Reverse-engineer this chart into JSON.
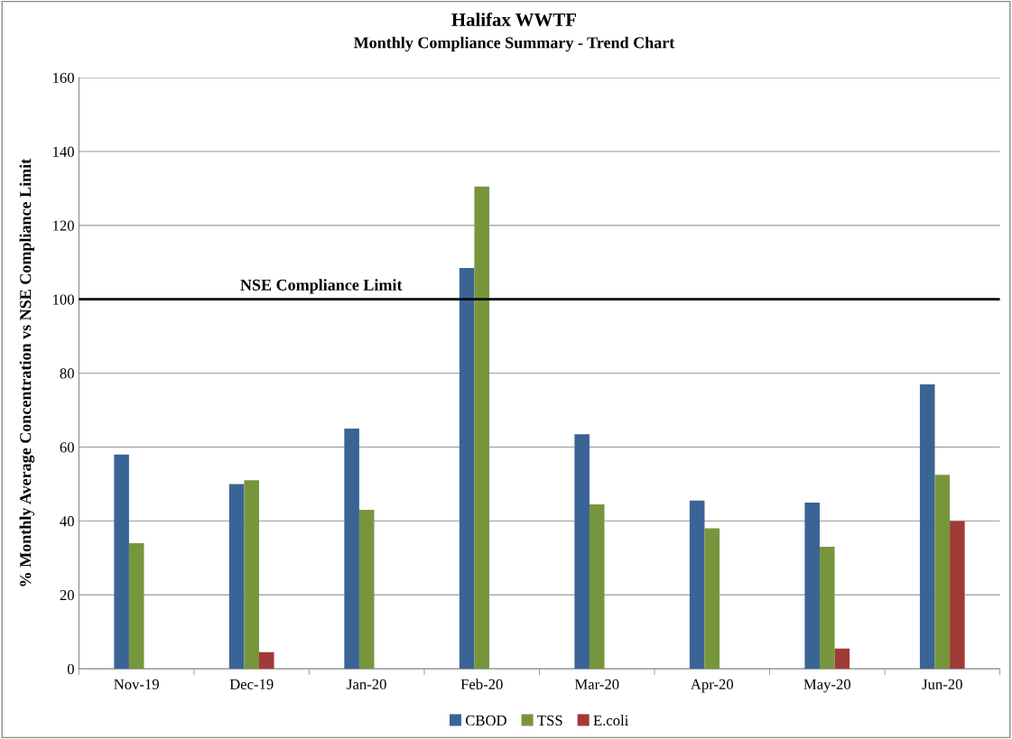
{
  "chart_data": {
    "type": "bar",
    "title": "Halifax WWTF",
    "subtitle": "Monthly Compliance Summary - Trend Chart",
    "ylabel": "% Monthly Average Concentration vs NSE Compliance Limit",
    "categories": [
      "Nov-19",
      "Dec-19",
      "Jan-20",
      "Feb-20",
      "Mar-20",
      "Apr-20",
      "May-20",
      "Jun-20"
    ],
    "series": [
      {
        "name": "CBOD",
        "color": "#3a6496",
        "values": [
          58,
          50,
          65,
          108.5,
          63.5,
          45.5,
          45,
          77
        ]
      },
      {
        "name": "TSS",
        "color": "#77963c",
        "values": [
          34,
          51,
          43,
          130.5,
          44.5,
          38,
          33,
          52.5
        ]
      },
      {
        "name": "E.coli",
        "color": "#a03a36",
        "values": [
          null,
          4.5,
          null,
          null,
          null,
          null,
          5.5,
          40
        ]
      }
    ],
    "ylim": [
      0,
      160
    ],
    "yticks": [
      0,
      20,
      40,
      60,
      80,
      100,
      120,
      140,
      160
    ],
    "grid": "y",
    "legend": "bottom",
    "ref_lines": [
      {
        "axis": "y",
        "value": 100,
        "label": "NSE Compliance Limit",
        "color": "#000000"
      }
    ]
  }
}
